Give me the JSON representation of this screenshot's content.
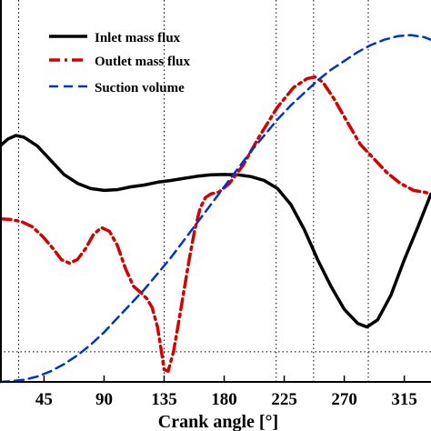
{
  "chart_data": {
    "type": "line",
    "xlabel": "Crank angle [°]",
    "xticks": [
      45,
      90,
      135,
      180,
      225,
      270,
      315
    ],
    "xlim": [
      12,
      335
    ],
    "ylim": [
      0,
      1
    ],
    "vertical_reference_lines": [
      26,
      135,
      219,
      247,
      288
    ],
    "horizontal_reference_line": 0.085,
    "legend_position": "top-center",
    "grid": false,
    "series": [
      {
        "name": "Inlet mass flux",
        "color": "#000000",
        "style": "solid",
        "x": [
          12,
          18,
          24,
          30,
          40,
          50,
          60,
          70,
          80,
          90,
          100,
          110,
          120,
          130,
          140,
          150,
          160,
          170,
          180,
          190,
          200,
          210,
          220,
          230,
          240,
          250,
          260,
          270,
          280,
          287,
          295,
          305,
          315,
          325,
          335
        ],
        "y": [
          0.665,
          0.685,
          0.695,
          0.69,
          0.665,
          0.625,
          0.585,
          0.56,
          0.545,
          0.54,
          0.542,
          0.55,
          0.555,
          0.563,
          0.568,
          0.574,
          0.58,
          0.584,
          0.585,
          0.584,
          0.579,
          0.568,
          0.545,
          0.5,
          0.43,
          0.345,
          0.27,
          0.205,
          0.165,
          0.155,
          0.175,
          0.245,
          0.345,
          0.435,
          0.53
        ]
      },
      {
        "name": "Outlet mass flux",
        "color": "#d40000",
        "style": "dashdot",
        "x": [
          12,
          20,
          28,
          36,
          44,
          52,
          58,
          64,
          70,
          76,
          82,
          88,
          94,
          100,
          106,
          112,
          118,
          122,
          126,
          130,
          133,
          135,
          138,
          142,
          146,
          150,
          154,
          158,
          162,
          166,
          170,
          176,
          184,
          194,
          206,
          220,
          232,
          242,
          248,
          254,
          262,
          272,
          282,
          292,
          302,
          312,
          322,
          330,
          335
        ],
        "y": [
          0.46,
          0.458,
          0.452,
          0.438,
          0.41,
          0.375,
          0.345,
          0.335,
          0.345,
          0.375,
          0.415,
          0.435,
          0.425,
          0.385,
          0.32,
          0.27,
          0.25,
          0.235,
          0.21,
          0.155,
          0.085,
          0.035,
          0.03,
          0.085,
          0.17,
          0.26,
          0.35,
          0.43,
          0.49,
          0.52,
          0.53,
          0.535,
          0.56,
          0.61,
          0.69,
          0.775,
          0.83,
          0.855,
          0.86,
          0.845,
          0.8,
          0.735,
          0.67,
          0.63,
          0.59,
          0.56,
          0.54,
          0.535,
          0.53
        ]
      },
      {
        "name": "Suction volume",
        "color": "#0033cc",
        "style": "dashed",
        "x": [
          12,
          20,
          30,
          40,
          50,
          60,
          70,
          80,
          90,
          100,
          110,
          120,
          130,
          140,
          150,
          160,
          170,
          180,
          190,
          200,
          210,
          220,
          230,
          240,
          250,
          260,
          270,
          280,
          290,
          300,
          310,
          320,
          330,
          335
        ],
        "y": [
          0.0,
          0.002,
          0.006,
          0.015,
          0.03,
          0.05,
          0.075,
          0.105,
          0.14,
          0.18,
          0.22,
          0.26,
          0.305,
          0.35,
          0.4,
          0.45,
          0.5,
          0.55,
          0.6,
          0.65,
          0.695,
          0.74,
          0.78,
          0.815,
          0.85,
          0.88,
          0.905,
          0.93,
          0.95,
          0.965,
          0.975,
          0.978,
          0.972,
          0.965
        ]
      }
    ]
  }
}
